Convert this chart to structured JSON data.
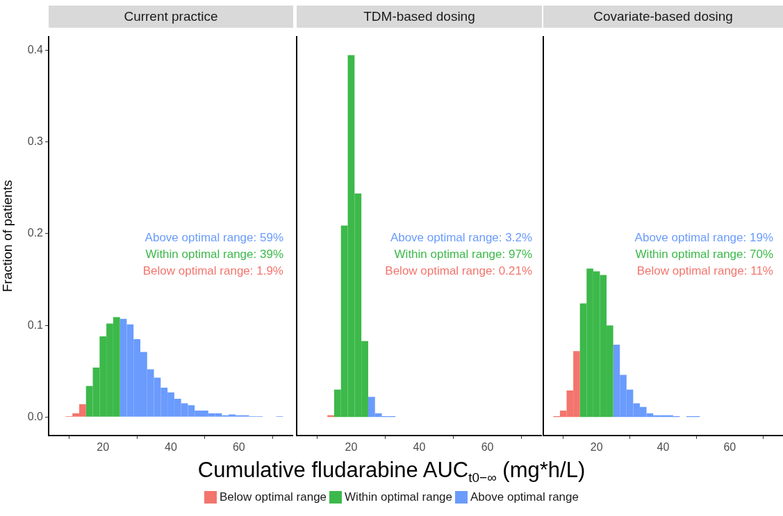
{
  "chart_data": [
    {
      "type": "histogram",
      "title": "Current practice",
      "ylabel": "Fraction of patients",
      "xlabel": "Cumulative fludarabine AUC$_{t0−∞}$ (mg*h/L)",
      "bins": [
        9,
        11,
        13,
        15,
        17,
        19,
        21,
        23,
        25,
        27,
        29,
        31,
        33,
        35,
        37,
        39,
        41,
        43,
        45,
        47,
        49,
        51,
        53,
        55,
        57,
        59,
        61,
        63,
        65,
        67,
        69,
        71,
        73
      ],
      "series": [
        {
          "name": "Below optimal range",
          "color": "#f3756d",
          "values": [
            0.001,
            0.004,
            0.014,
            0,
            0,
            0,
            0,
            0,
            0,
            0,
            0,
            0,
            0,
            0,
            0,
            0,
            0,
            0,
            0,
            0,
            0,
            0,
            0,
            0,
            0,
            0,
            0,
            0,
            0,
            0,
            0,
            0
          ]
        },
        {
          "name": "Within optimal range",
          "color": "#3cb94a",
          "values": [
            0,
            0,
            0,
            0.034,
            0.054,
            0.088,
            0.102,
            0.109,
            0,
            0,
            0,
            0,
            0,
            0,
            0,
            0,
            0,
            0,
            0,
            0,
            0,
            0,
            0,
            0,
            0,
            0,
            0,
            0,
            0,
            0,
            0,
            0
          ]
        },
        {
          "name": "Above optimal range",
          "color": "#6a9bfd",
          "values": [
            0,
            0,
            0,
            0,
            0,
            0,
            0,
            0,
            0.107,
            0.101,
            0.085,
            0.071,
            0.052,
            0.043,
            0.032,
            0.027,
            0.02,
            0.015,
            0.013,
            0.007,
            0.007,
            0.004,
            0.004,
            0.002,
            0.003,
            0.002,
            0.002,
            0.001,
            0.001,
            0,
            0,
            0.001
          ]
        }
      ],
      "annotations": [
        "Above optimal range: 59%",
        "Within optimal range: 39%",
        "Below optimal range: 1.9%"
      ],
      "xlim": [
        4,
        76
      ],
      "xticks": [
        20,
        40,
        60
      ],
      "ylim": [
        -0.02,
        0.415
      ],
      "yticks": [
        {
          "value": 0,
          "label": "0.0"
        },
        {
          "value": 0.1,
          "label": "0.1"
        },
        {
          "value": 0.2,
          "label": "0.2"
        },
        {
          "value": 0.3,
          "label": "0.3"
        },
        {
          "value": 0.4,
          "label": "0.4"
        }
      ],
      "legend": "bottom"
    },
    {
      "type": "histogram",
      "title": "TDM-based dosing",
      "bins": [
        13,
        15,
        17,
        19,
        21,
        23,
        25,
        27,
        29,
        31,
        33
      ],
      "series": [
        {
          "color": "#f3756d",
          "values": [
            0.002,
            0,
            0,
            0,
            0,
            0,
            0,
            0,
            0,
            0
          ]
        },
        {
          "color": "#3cb94a",
          "values": [
            0,
            0.03,
            0.209,
            0.395,
            0.244,
            0.083,
            0,
            0,
            0,
            0
          ]
        },
        {
          "color": "#6a9bfd",
          "values": [
            0,
            0,
            0,
            0,
            0,
            0,
            0.022,
            0.004,
            0.001,
            0.001
          ]
        }
      ],
      "annotations": [
        "Above optimal range: 3.2%",
        "Within optimal range: 97%",
        "Below optimal range: 0.21%"
      ],
      "xlim": [
        4,
        76
      ],
      "xticks": [
        20,
        40,
        60
      ],
      "ylim": [
        -0.02,
        0.415
      ],
      "tick_labels": "x"
    },
    {
      "type": "histogram",
      "title": "Covariate-based dosing",
      "bins": [
        7,
        9,
        11,
        13,
        15,
        17,
        19,
        21,
        23,
        25,
        27,
        29,
        31,
        33,
        35,
        37,
        39,
        41,
        43,
        45,
        47,
        49,
        51
      ],
      "series": [
        {
          "color": "#f3756d",
          "values": [
            0.001,
            0.007,
            0.029,
            0.072,
            0,
            0,
            0,
            0,
            0,
            0,
            0,
            0,
            0,
            0,
            0,
            0,
            0,
            0,
            0,
            0,
            0,
            0
          ]
        },
        {
          "color": "#3cb94a",
          "values": [
            0,
            0,
            0,
            0,
            0.124,
            0.162,
            0.159,
            0.155,
            0.1,
            0,
            0,
            0,
            0,
            0,
            0,
            0,
            0,
            0,
            0,
            0,
            0,
            0
          ]
        },
        {
          "color": "#6a9bfd",
          "values": [
            0,
            0,
            0,
            0,
            0,
            0,
            0,
            0,
            0,
            0.079,
            0.046,
            0.03,
            0.015,
            0.011,
            0.004,
            0.002,
            0.002,
            0.002,
            0.001,
            0,
            0.001,
            0.001
          ]
        }
      ],
      "annotations": [
        "Above optimal range: 19%",
        "Within optimal range: 70%",
        "Below optimal range: 11%"
      ],
      "xlim": [
        4,
        76
      ],
      "xticks": [
        20,
        40,
        60
      ],
      "ylim": [
        -0.02,
        0.415
      ],
      "tick_labels": "x"
    }
  ]
}
